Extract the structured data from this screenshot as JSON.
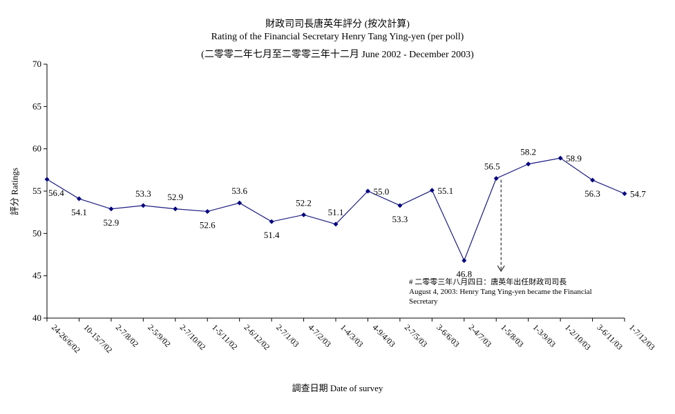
{
  "chart_data": {
    "type": "line",
    "title": "財政司司長唐英年評分 (按次計算)",
    "subtitle": "Rating of the Financial Secretary Henry Tang Ying-yen  (per poll)",
    "subtitle2": "(二零零二年七月至二零零三年十二月 June 2002 - December 2003)",
    "xlabel": "調查日期 Date of survey",
    "ylabel": "評分 Ratings",
    "ylim": [
      40,
      70
    ],
    "yticks": [
      "40",
      "45",
      "50",
      "55",
      "60",
      "65",
      "70"
    ],
    "categories": [
      "24-26/6/02",
      "10-15/7/02",
      "2-7/8/02",
      "2-5/9/02",
      "2-7/10/02",
      "1-5/11/02",
      "2-6/12/02",
      "2-7/1/03",
      "4-7/2/03",
      "1-4/3/03",
      "4-9/4/03",
      "2-7/5/03",
      "3-6/6/03",
      "2-4/7/03",
      "1-5/8/03",
      "1-3/9/03",
      "1-2/10/03",
      "3-6/11/03",
      "1-7/12/03"
    ],
    "values": [
      56.4,
      54.1,
      52.9,
      53.3,
      52.9,
      52.6,
      53.6,
      51.4,
      52.2,
      51.1,
      55.0,
      53.3,
      55.1,
      46.8,
      56.5,
      58.2,
      58.9,
      56.3,
      54.7
    ],
    "data_labels": [
      "56.4",
      "54.1",
      "52.9",
      "53.3",
      "52.9",
      "52.6",
      "53.6",
      "51.4",
      "52.2",
      "51.1",
      "55.0",
      "53.3",
      "55.1",
      "46.8",
      "56.5",
      "58.2",
      "58.9",
      "56.3",
      "54.7"
    ],
    "grid": false,
    "colors": {
      "line": "#1a1a80",
      "marker": "#000080",
      "axis": "#000000"
    },
    "annotation": {
      "line1": "# 二零零三年八月四日：唐英年出任財政司司長",
      "line2": "August 4, 2003: Henry Tang Ying-yen became the Financial Secretary",
      "target_category": "1-5/8/03",
      "arrow_style": "dashed"
    }
  }
}
